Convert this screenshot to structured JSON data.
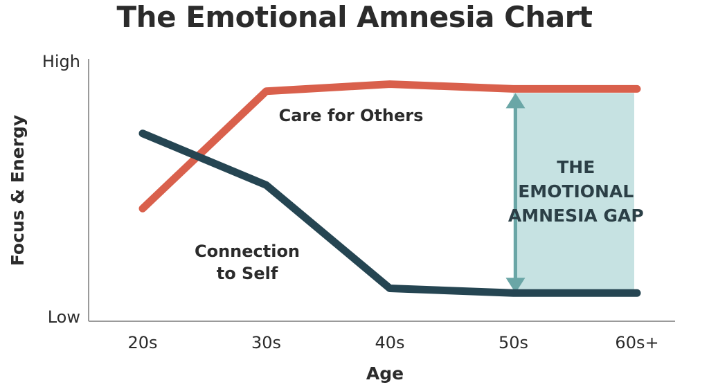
{
  "chart_data": {
    "type": "line",
    "title": "The Emotional Amnesia Chart",
    "xlabel": "Age",
    "ylabel": "Focus & Energy",
    "categories": [
      "20s",
      "30s",
      "40s",
      "50s",
      "60s+"
    ],
    "y_tick_labels": {
      "high": "High",
      "low": "Low"
    },
    "ylim": [
      0,
      100
    ],
    "grid": false,
    "series": [
      {
        "name": "Care for Others",
        "color": "#d9604c",
        "points": [
          {
            "x": 0,
            "y": 43
          },
          {
            "x": 1,
            "y": 93
          },
          {
            "x": 2,
            "y": 96
          },
          {
            "x": 3,
            "y": 94
          },
          {
            "x": 4,
            "y": 94
          }
        ]
      },
      {
        "name": "Connection to Self",
        "name_lines": [
          "Connection",
          "to Self"
        ],
        "color": "#254552",
        "points": [
          {
            "x": 0,
            "y": 75
          },
          {
            "x": 1,
            "y": 53
          },
          {
            "x": 2,
            "y": 9
          },
          {
            "x": 3,
            "y": 7
          },
          {
            "x": 4,
            "y": 7
          }
        ]
      }
    ],
    "annotation": {
      "text_lines": [
        "THE",
        "EMOTIONAL",
        "AMNESIA GAP"
      ],
      "fill_color": "#c6e2e2",
      "arrow_color": "#6aa6a6",
      "x_range": [
        3,
        4
      ]
    },
    "axis_color": "#9a9a9a"
  }
}
